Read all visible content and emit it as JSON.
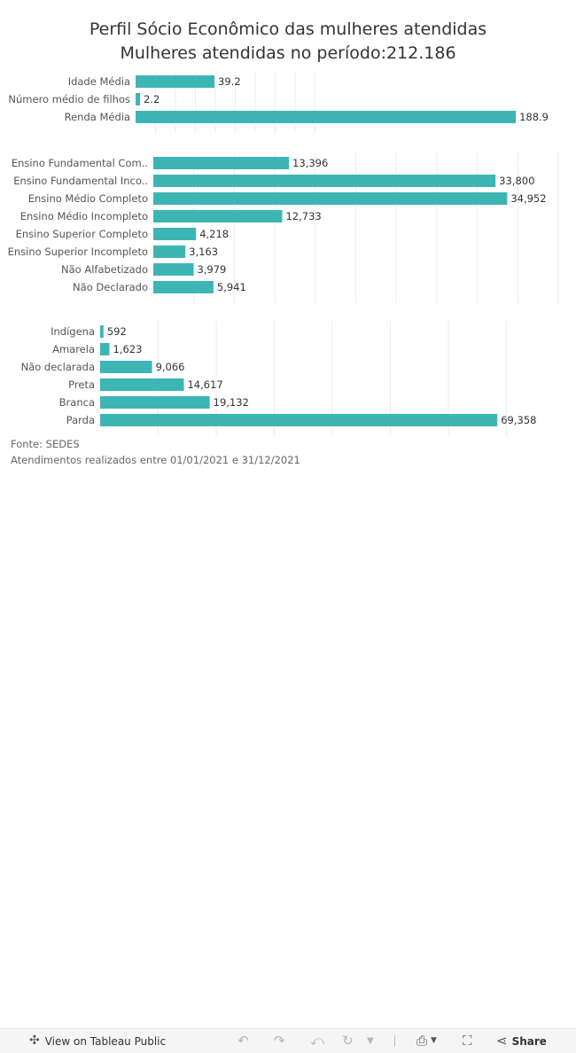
{
  "title": {
    "line1": "Perfil Sócio Econômico das mulheres atendidas",
    "line2": "Mulheres atendidas no período:212.186"
  },
  "colors": {
    "bar": "#3db5b5"
  },
  "chart_data": [
    {
      "type": "bar",
      "orientation": "horizontal",
      "categories": [
        "Idade Média",
        "Número médio de filhos",
        "Renda Média"
      ],
      "values": [
        39.2,
        2.2,
        188.9
      ],
      "value_labels": [
        "39.2",
        "2.2",
        "188.9"
      ],
      "xlim": [
        0,
        210
      ]
    },
    {
      "type": "bar",
      "orientation": "horizontal",
      "categories": [
        "Ensino Fundamental Com..",
        "Ensino Fundamental Inco..",
        "Ensino Médio Completo",
        "Ensino Médio Incompleto",
        "Ensino Superior Completo",
        "Ensino Superior Incompleto",
        "Não Alfabetizado",
        "Não Declarado"
      ],
      "values": [
        13396,
        33800,
        34952,
        12733,
        4218,
        3163,
        3979,
        5941
      ],
      "value_labels": [
        "13,396",
        "33,800",
        "34,952",
        "12,733",
        "4,218",
        "3,163",
        "3,979",
        "5,941"
      ],
      "xlim": [
        0,
        40000
      ]
    },
    {
      "type": "bar",
      "orientation": "horizontal",
      "categories": [
        "Indígena",
        "Amarela",
        "Não declarada",
        "Preta",
        "Branca",
        "Parda"
      ],
      "values": [
        592,
        1623,
        9066,
        14617,
        19132,
        69358
      ],
      "value_labels": [
        "592",
        "1,623",
        "9,066",
        "14,617",
        "19,132",
        "69,358"
      ],
      "xlim": [
        0,
        80000
      ]
    }
  ],
  "footer": {
    "source": "Fonte: SEDES",
    "period": "Atendimentos realizados entre 01/01/2021 e 31/12/2021"
  },
  "toolbar": {
    "view_label": "View on Tableau Public",
    "share_label": "Share",
    "icons": [
      "tableau-icon",
      "undo-icon",
      "redo-icon",
      "revert-icon",
      "refresh-icon",
      "pause-icon",
      "download-icon",
      "fullscreen-icon",
      "share-icon"
    ]
  }
}
